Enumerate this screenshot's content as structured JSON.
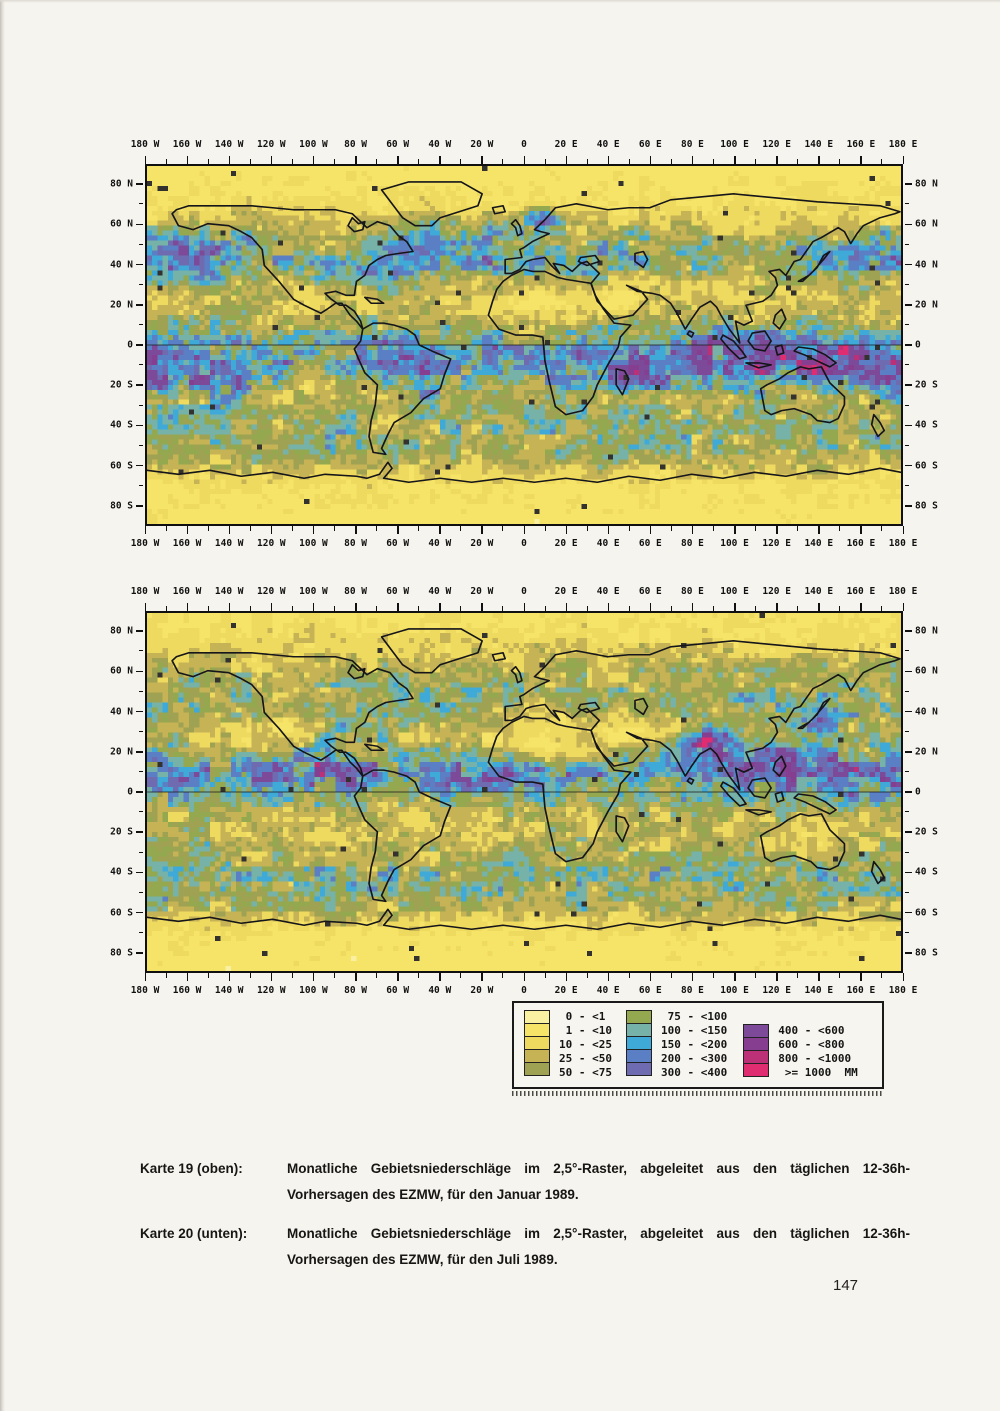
{
  "page": {
    "number": "147"
  },
  "axis": {
    "lon_labels": [
      "180 W",
      "160 W",
      "140 W",
      "120 W",
      "100 W",
      "80 W",
      "60 W",
      "40 W",
      "20 W",
      "0",
      "20 E",
      "40 E",
      "60 E",
      "80 E",
      "100 E",
      "120 E",
      "140 E",
      "160 E",
      "180 E"
    ],
    "lat_labels": [
      "80 N",
      "60 N",
      "40 N",
      "20 N",
      "0",
      "20 S",
      "40 S",
      "60 S",
      "80 S"
    ]
  },
  "palette": {
    "thresholds": [
      1,
      10,
      25,
      50,
      75,
      100,
      150,
      200,
      300,
      400,
      600,
      800,
      1000
    ],
    "colors": [
      "#f9f0a2",
      "#f6e468",
      "#eeda5e",
      "#c6b356",
      "#a0a253",
      "#93a84f",
      "#76b2a8",
      "#3fa9d8",
      "#5b7fc4",
      "#6f6bb0",
      "#7c4a98",
      "#863e90",
      "#bc3078",
      "#e02d72"
    ]
  },
  "legend": {
    "columns": [
      {
        "labels": [
          " 0 - <1",
          " 1 - <10",
          "10 - <25",
          "25 - <50",
          "50 - <75"
        ]
      },
      {
        "labels": [
          " 75 - <100",
          "100 - <150",
          "150 - <200",
          "200 - <300",
          "300 - <400"
        ]
      },
      {
        "labels": [
          "400 - <600",
          "600 - <800",
          "800 - <1000",
          " >= 1000  MM"
        ]
      }
    ]
  },
  "maps": [
    {
      "name": "karte-19-januar-1989",
      "seed": 3,
      "bands": [
        [
          90,
          4
        ],
        [
          80,
          8
        ],
        [
          70,
          14
        ],
        [
          62,
          35
        ],
        [
          55,
          90
        ],
        [
          45,
          120
        ],
        [
          38,
          110
        ],
        [
          30,
          60
        ],
        [
          22,
          38
        ],
        [
          15,
          45
        ],
        [
          8,
          80
        ],
        [
          2,
          120
        ],
        [
          -3,
          170
        ],
        [
          -8,
          200
        ],
        [
          -14,
          150
        ],
        [
          -20,
          100
        ],
        [
          -26,
          75
        ],
        [
          -32,
          75
        ],
        [
          -40,
          85
        ],
        [
          -50,
          80
        ],
        [
          -58,
          55
        ],
        [
          -64,
          25
        ],
        [
          -70,
          10
        ],
        [
          -90,
          4
        ]
      ],
      "wet": [
        [
          130,
          -6,
          40,
          11,
          340
        ],
        [
          172,
          -14,
          25,
          9,
          260
        ],
        [
          -148,
          -18,
          20,
          8,
          160
        ],
        [
          55,
          -13,
          16,
          8,
          260
        ],
        [
          25,
          -8,
          12,
          7,
          180
        ],
        [
          -60,
          -8,
          17,
          9,
          220
        ],
        [
          -46,
          -21,
          11,
          7,
          130
        ],
        [
          -168,
          44,
          35,
          9,
          130
        ],
        [
          -131,
          51,
          7,
          5,
          330
        ],
        [
          8,
          62,
          6,
          5,
          200
        ],
        [
          -40,
          50,
          28,
          9,
          140
        ],
        [
          -70,
          38,
          14,
          7,
          90
        ],
        [
          95,
          -2,
          18,
          8,
          150
        ]
      ],
      "dry": [
        [
          10,
          22,
          26,
          10,
          0.04
        ],
        [
          45,
          24,
          16,
          8,
          0.06
        ],
        [
          78,
          28,
          18,
          7,
          0.3
        ],
        [
          105,
          58,
          40,
          12,
          0.45
        ],
        [
          -105,
          55,
          30,
          9,
          0.35
        ],
        [
          110,
          35,
          20,
          8,
          0.45
        ],
        [
          -112,
          32,
          14,
          8,
          0.35
        ],
        [
          133,
          -26,
          16,
          7,
          0.3
        ],
        [
          -100,
          -22,
          26,
          10,
          0.4
        ],
        [
          -10,
          -24,
          15,
          8,
          0.5
        ],
        [
          -65,
          -42,
          10,
          8,
          0.45
        ]
      ]
    },
    {
      "name": "karte-20-juli-1989",
      "seed": 8,
      "bands": [
        [
          90,
          8
        ],
        [
          80,
          13
        ],
        [
          70,
          25
        ],
        [
          60,
          55
        ],
        [
          50,
          80
        ],
        [
          40,
          70
        ],
        [
          32,
          55
        ],
        [
          25,
          70
        ],
        [
          18,
          110
        ],
        [
          10,
          170
        ],
        [
          5,
          160
        ],
        [
          0,
          105
        ],
        [
          -8,
          60
        ],
        [
          -16,
          45
        ],
        [
          -24,
          50
        ],
        [
          -32,
          65
        ],
        [
          -40,
          90
        ],
        [
          -50,
          90
        ],
        [
          -58,
          60
        ],
        [
          -66,
          20
        ],
        [
          -72,
          8
        ],
        [
          -90,
          4
        ]
      ],
      "wet": [
        [
          85,
          24,
          16,
          7,
          420
        ],
        [
          89,
          27,
          6,
          3,
          450
        ],
        [
          108,
          16,
          20,
          9,
          260
        ],
        [
          148,
          9,
          38,
          8,
          220
        ],
        [
          -98,
          11,
          30,
          7,
          260
        ],
        [
          -25,
          7,
          25,
          6,
          190
        ],
        [
          2,
          9,
          13,
          5,
          160
        ],
        [
          140,
          -4,
          13,
          6,
          120
        ],
        [
          142,
          36,
          14,
          8,
          130
        ],
        [
          -80,
          32,
          12,
          7,
          100
        ]
      ],
      "dry": [
        [
          8,
          23,
          26,
          10,
          0.04
        ],
        [
          48,
          28,
          20,
          9,
          0.06
        ],
        [
          70,
          30,
          14,
          7,
          0.25
        ],
        [
          16,
          36,
          18,
          7,
          0.3
        ],
        [
          -116,
          33,
          12,
          8,
          0.2
        ],
        [
          -135,
          25,
          22,
          9,
          0.35
        ],
        [
          -45,
          28,
          18,
          7,
          0.5
        ],
        [
          133,
          -26,
          18,
          9,
          0.35
        ],
        [
          75,
          -25,
          20,
          7,
          0.5
        ],
        [
          -12,
          -20,
          15,
          8,
          0.4
        ],
        [
          -95,
          -22,
          24,
          10,
          0.35
        ],
        [
          -55,
          -12,
          14,
          8,
          0.45
        ]
      ]
    }
  ],
  "captions": [
    {
      "label": "Karte 19 (oben):",
      "text": "Monatliche Gebietsniederschläge im 2,5°-Raster, abgeleitet aus den täglichen 12-36h-Vorhersagen des EZMW, für den Januar 1989."
    },
    {
      "label": "Karte 20 (unten):",
      "text": "Monatliche Gebietsniederschläge im 2,5°-Raster, abgeleitet aus den täglichen 12-36h-Vorhersagen des EZMW, für den Juli 1989."
    }
  ]
}
